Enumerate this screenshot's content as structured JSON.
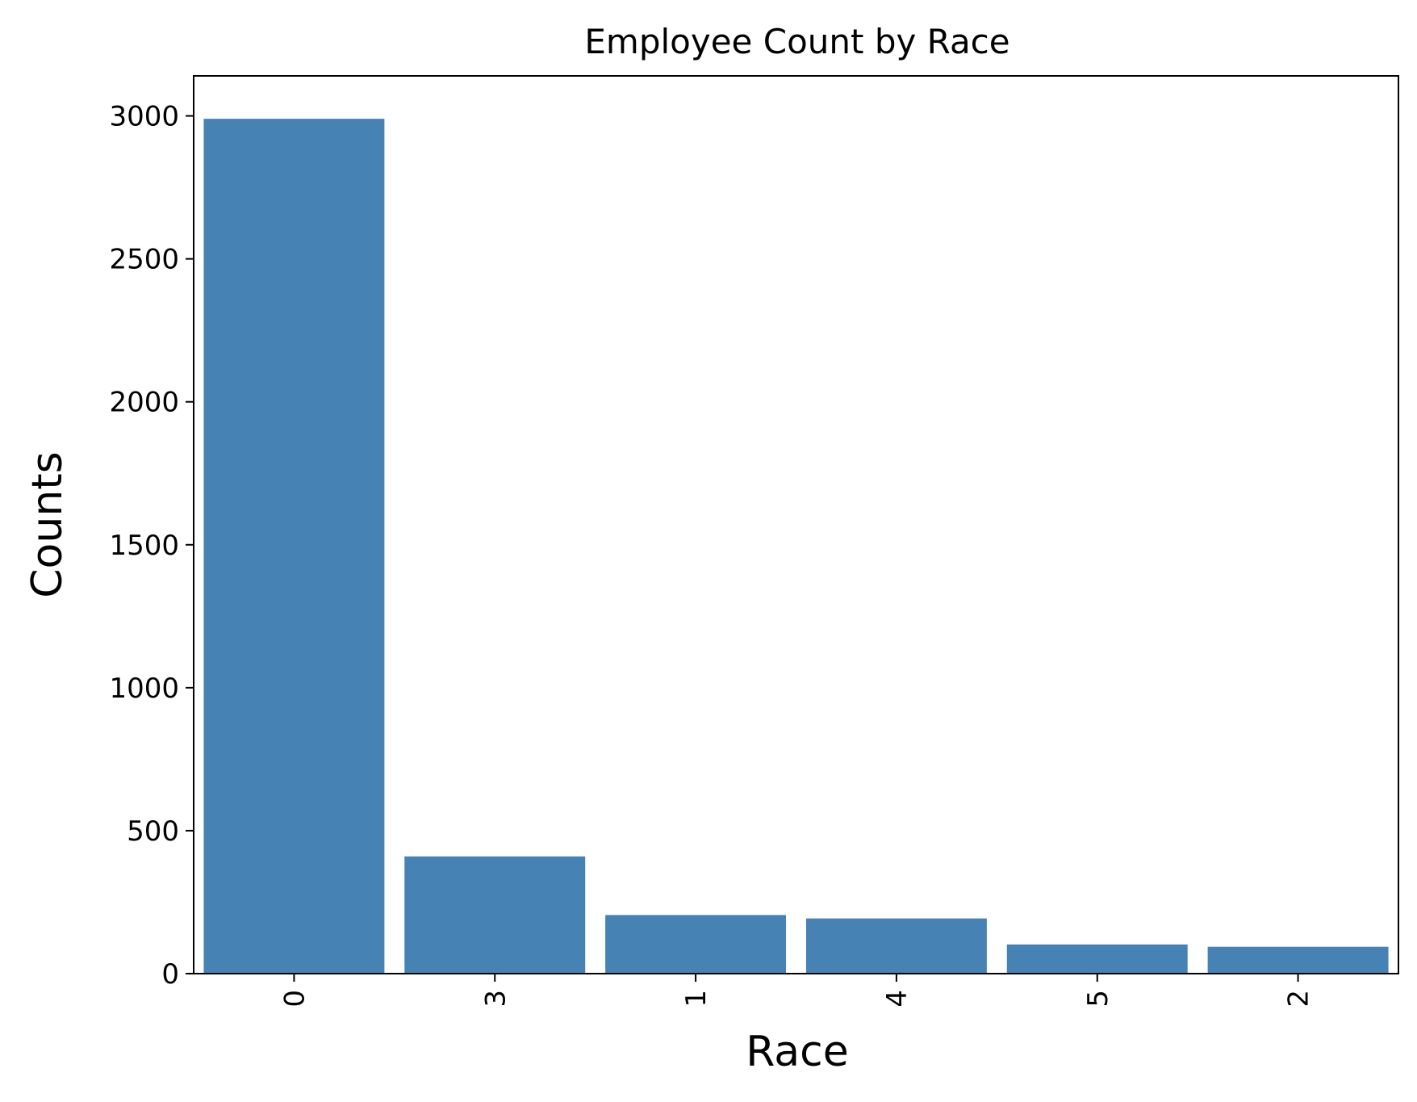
{
  "chart_data": {
    "type": "bar",
    "title": "Employee Count by Race",
    "xlabel": "Race",
    "ylabel": "Counts",
    "categories": [
      "0",
      "3",
      "1",
      "4",
      "5",
      "2"
    ],
    "values": [
      2990,
      410,
      205,
      193,
      102,
      94
    ],
    "ylim": [
      0,
      3140
    ],
    "yticks": [
      0,
      500,
      1000,
      1500,
      2000,
      2500,
      3000
    ],
    "x_tick_rotation": "vertical",
    "grid": false,
    "legend": "none",
    "bar_color": "#4682b4",
    "axis_color": "#000000"
  }
}
